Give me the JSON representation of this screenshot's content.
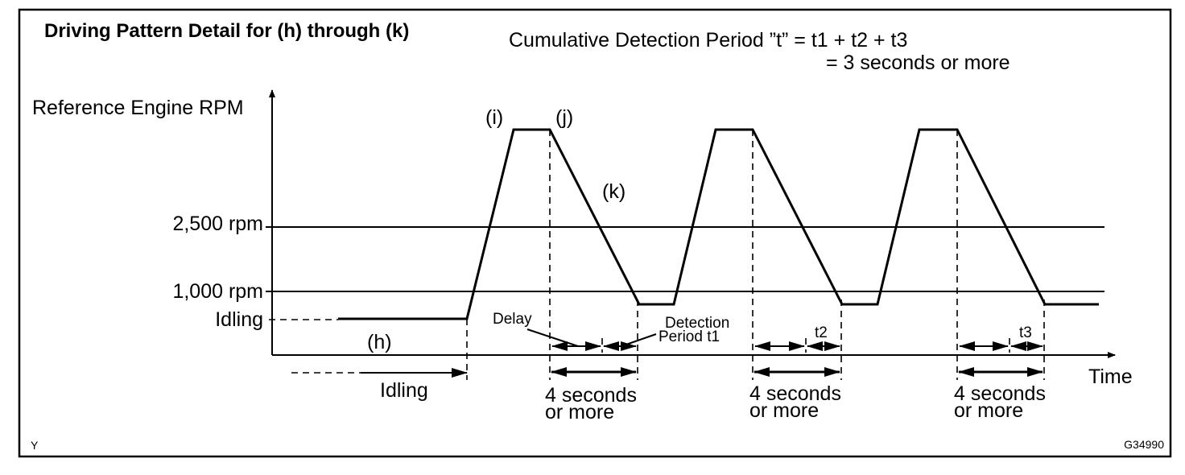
{
  "title": "Driving Pattern Detail for (h) through (k)",
  "formula": {
    "line1": "Cumulative Detection Period ”t” = t1 + t2 + t3",
    "line2": "= 3 seconds or more"
  },
  "y_axis_label": "Reference Engine RPM",
  "x_axis_label": "Time",
  "levels": {
    "rpm_2500": "2,500 rpm",
    "rpm_1000": "1,000 rpm",
    "idling": "Idling"
  },
  "points": {
    "h": "(h)",
    "i": "(i)",
    "j": "(j)",
    "k": "(k)"
  },
  "idling_label": "Idling",
  "delay_label": "Delay",
  "detection": {
    "line1": "Detection",
    "line2": "Period t1"
  },
  "periods": [
    "t2",
    "t3"
  ],
  "duration_label": {
    "line1": "4 seconds",
    "line2": "or more"
  },
  "corner_left": "Y",
  "figure_code": "G34990"
}
